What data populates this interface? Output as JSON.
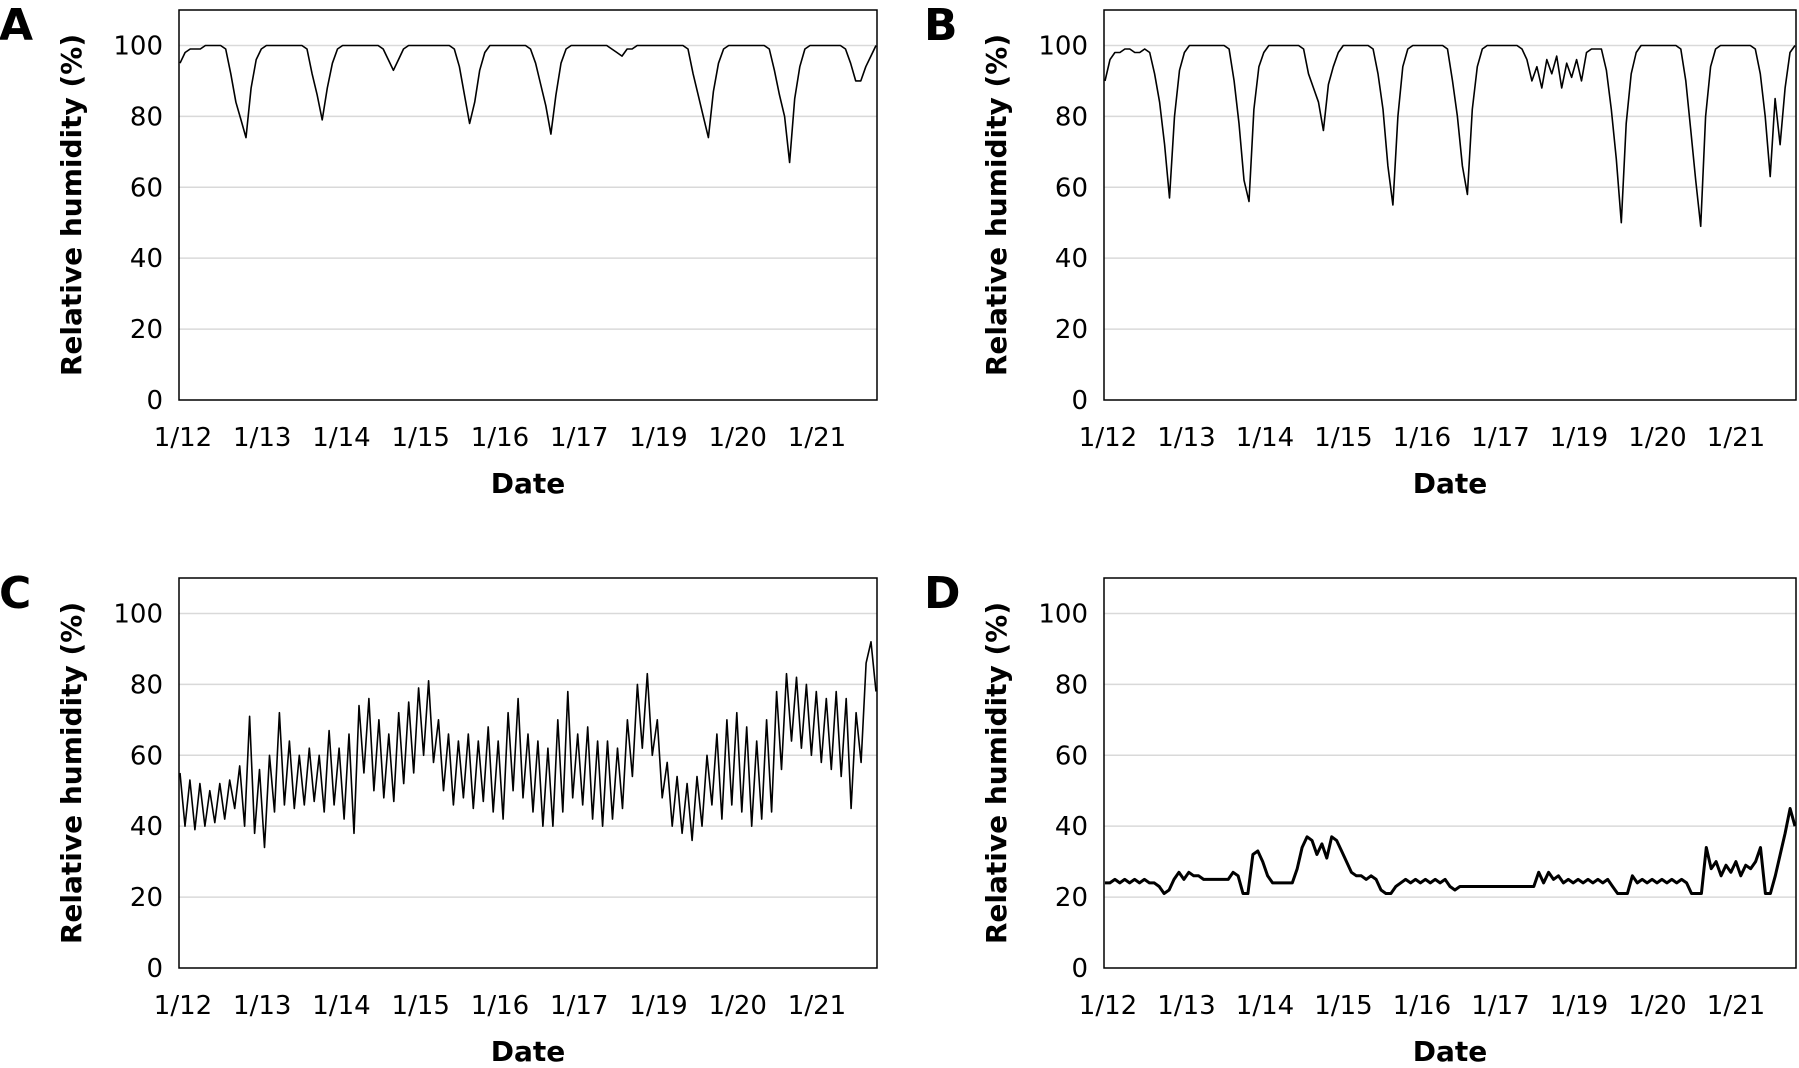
{
  "chart_data": [
    {
      "panel": "A",
      "type": "line",
      "xlabel": "Date",
      "ylabel": "Relative humidity (%)",
      "ylim": [
        0,
        110
      ],
      "y_ticks": [
        "0",
        "20",
        "40",
        "60",
        "80",
        "100"
      ],
      "x_ticks": [
        "1/12",
        "1/13",
        "1/14",
        "1/15",
        "1/16",
        "1/17",
        "1/19",
        "1/20",
        "1/21"
      ],
      "grid": true,
      "series": [
        {
          "values": [
            95,
            98,
            99,
            99,
            99,
            100,
            100,
            100,
            100,
            99,
            92,
            84,
            79,
            74,
            88,
            96,
            99,
            100,
            100,
            100,
            100,
            100,
            100,
            100,
            100,
            99,
            92,
            86,
            79,
            88,
            95,
            99,
            100,
            100,
            100,
            100,
            100,
            100,
            100,
            100,
            99,
            96,
            93,
            96,
            99,
            100,
            100,
            100,
            100,
            100,
            100,
            100,
            100,
            100,
            99,
            94,
            86,
            78,
            84,
            93,
            98,
            100,
            100,
            100,
            100,
            100,
            100,
            100,
            100,
            99,
            95,
            89,
            83,
            75,
            86,
            95,
            99,
            100,
            100,
            100,
            100,
            100,
            100,
            100,
            100,
            99,
            98,
            97,
            99,
            99,
            100,
            100,
            100,
            100,
            100,
            100,
            100,
            100,
            100,
            100,
            99,
            92,
            86,
            80,
            74,
            87,
            95,
            99,
            100,
            100,
            100,
            100,
            100,
            100,
            100,
            100,
            99,
            93,
            86,
            80,
            67,
            85,
            94,
            99,
            100,
            100,
            100,
            100,
            100,
            100,
            100,
            99,
            95,
            90,
            90,
            94,
            97,
            100
          ]
        }
      ]
    },
    {
      "panel": "B",
      "type": "line",
      "xlabel": "Date",
      "ylabel": "Relative humidity (%)",
      "ylim": [
        0,
        110
      ],
      "y_ticks": [
        "0",
        "20",
        "40",
        "60",
        "80",
        "100"
      ],
      "x_ticks": [
        "1/12",
        "1/13",
        "1/14",
        "1/15",
        "1/16",
        "1/17",
        "1/19",
        "1/20",
        "1/21"
      ],
      "grid": true,
      "series": [
        {
          "values": [
            90,
            96,
            98,
            98,
            99,
            99,
            98,
            98,
            99,
            98,
            92,
            84,
            72,
            57,
            80,
            93,
            98,
            100,
            100,
            100,
            100,
            100,
            100,
            100,
            100,
            99,
            90,
            78,
            62,
            56,
            82,
            94,
            98,
            100,
            100,
            100,
            100,
            100,
            100,
            100,
            99,
            92,
            88,
            84,
            76,
            89,
            94,
            98,
            100,
            100,
            100,
            100,
            100,
            100,
            99,
            92,
            82,
            66,
            55,
            80,
            94,
            99,
            100,
            100,
            100,
            100,
            100,
            100,
            100,
            99,
            90,
            80,
            66,
            58,
            82,
            94,
            99,
            100,
            100,
            100,
            100,
            100,
            100,
            100,
            99,
            96,
            90,
            94,
            88,
            96,
            92,
            97,
            88,
            95,
            91,
            96,
            90,
            98,
            99,
            99,
            99,
            93,
            82,
            68,
            50,
            78,
            92,
            98,
            100,
            100,
            100,
            100,
            100,
            100,
            100,
            100,
            99,
            90,
            76,
            62,
            49,
            80,
            94,
            99,
            100,
            100,
            100,
            100,
            100,
            100,
            100,
            99,
            92,
            80,
            63,
            85,
            72,
            88,
            98,
            100
          ]
        }
      ]
    },
    {
      "panel": "C",
      "type": "line",
      "xlabel": "Date",
      "ylabel": "Relative humidity (%)",
      "ylim": [
        0,
        110
      ],
      "y_ticks": [
        "0",
        "20",
        "40",
        "60",
        "80",
        "100"
      ],
      "x_ticks": [
        "1/12",
        "1/13",
        "1/14",
        "1/15",
        "1/16",
        "1/17",
        "1/19",
        "1/20",
        "1/21"
      ],
      "grid": true,
      "series": [
        {
          "values": [
            55,
            40,
            53,
            39,
            52,
            40,
            50,
            41,
            52,
            42,
            53,
            45,
            57,
            40,
            71,
            38,
            56,
            34,
            60,
            44,
            72,
            46,
            64,
            45,
            60,
            46,
            62,
            47,
            60,
            44,
            67,
            46,
            62,
            42,
            66,
            38,
            74,
            55,
            76,
            50,
            70,
            48,
            66,
            47,
            72,
            52,
            75,
            55,
            79,
            60,
            81,
            58,
            70,
            50,
            66,
            46,
            64,
            48,
            66,
            45,
            64,
            47,
            68,
            44,
            64,
            42,
            72,
            50,
            76,
            48,
            66,
            44,
            64,
            40,
            62,
            40,
            70,
            44,
            78,
            48,
            66,
            46,
            68,
            42,
            64,
            40,
            64,
            42,
            62,
            45,
            70,
            54,
            80,
            62,
            83,
            60,
            70,
            48,
            58,
            40,
            54,
            38,
            52,
            36,
            54,
            40,
            60,
            46,
            66,
            42,
            70,
            46,
            72,
            44,
            68,
            40,
            64,
            42,
            70,
            44,
            78,
            56,
            83,
            64,
            82,
            62,
            80,
            60,
            78,
            58,
            76,
            56,
            78,
            54,
            76,
            45,
            72,
            58,
            86,
            92,
            78
          ]
        }
      ]
    },
    {
      "panel": "D",
      "type": "line",
      "xlabel": "Date",
      "ylabel": "Relative humidity (%)",
      "ylim": [
        0,
        110
      ],
      "y_ticks": [
        "0",
        "20",
        "40",
        "60",
        "80",
        "100"
      ],
      "x_ticks": [
        "1/12",
        "1/13",
        "1/14",
        "1/15",
        "1/16",
        "1/17",
        "1/19",
        "1/20",
        "1/21"
      ],
      "grid": true,
      "series": [
        {
          "values": [
            24,
            24,
            25,
            24,
            25,
            24,
            25,
            24,
            25,
            24,
            24,
            23,
            21,
            22,
            25,
            27,
            25,
            27,
            26,
            26,
            25,
            25,
            25,
            25,
            25,
            25,
            27,
            26,
            21,
            21,
            32,
            33,
            30,
            26,
            24,
            24,
            24,
            24,
            24,
            28,
            34,
            37,
            36,
            32,
            35,
            31,
            37,
            36,
            33,
            30,
            27,
            26,
            26,
            25,
            26,
            25,
            22,
            21,
            21,
            23,
            24,
            25,
            24,
            25,
            24,
            25,
            24,
            25,
            24,
            25,
            23,
            22,
            23,
            23,
            23,
            23,
            23,
            23,
            23,
            23,
            23,
            23,
            23,
            23,
            23,
            23,
            23,
            23,
            27,
            24,
            27,
            25,
            26,
            24,
            25,
            24,
            25,
            24,
            25,
            24,
            25,
            24,
            25,
            23,
            21,
            21,
            21,
            26,
            24,
            25,
            24,
            25,
            24,
            25,
            24,
            25,
            24,
            25,
            24,
            21,
            21,
            21,
            34,
            28,
            30,
            26,
            29,
            27,
            30,
            26,
            29,
            28,
            30,
            34,
            21,
            21,
            26,
            32,
            38,
            45,
            40
          ]
        }
      ]
    }
  ]
}
